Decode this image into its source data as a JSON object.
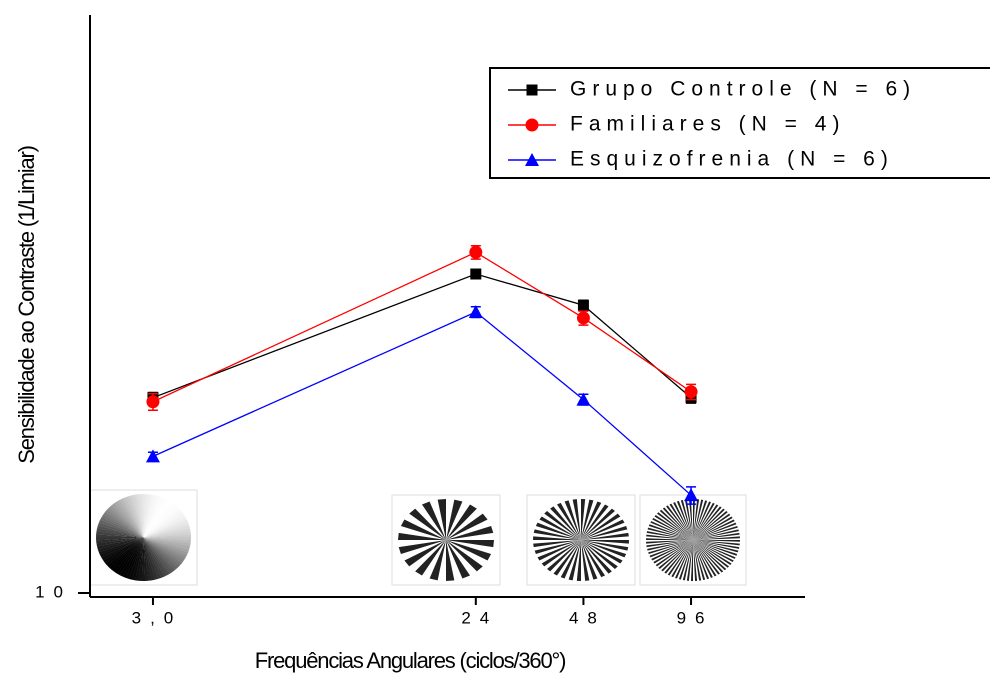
{
  "chart_data": {
    "type": "line",
    "x_label": "Frequências Angulares (ciclos/360°)",
    "y_label": "Sensibilidade ao Contraste (1/Limiar)",
    "xscale": "log",
    "yscale": "log",
    "x": [
      3,
      24,
      48,
      96
    ],
    "xlim": [
      2,
      200
    ],
    "ylim": [
      10,
      1000
    ],
    "xticks": [
      {
        "value": 3,
        "label": "3,0"
      },
      24,
      48,
      96
    ],
    "yticks": [
      10
    ],
    "legend": "upper right",
    "series": [
      {
        "name": "Grupo Controle (N = 6)",
        "color": "#000000",
        "marker": "square",
        "values": [
          47.4,
          127,
          99,
          47.4
        ],
        "errors": [
          2,
          4,
          4,
          2
        ]
      },
      {
        "name": "Familiares (N = 4)",
        "color": "#ff0000",
        "marker": "circle",
        "values": [
          45.9,
          151,
          89.5,
          49.7
        ],
        "errors": [
          3,
          8,
          5,
          3
        ]
      },
      {
        "name": "Esquizofrenia (N = 6)",
        "color": "#0000ff",
        "marker": "triangle",
        "values": [
          29.7,
          93.8,
          46.7,
          21.8
        ],
        "errors": [
          1,
          4,
          2,
          1.5
        ]
      }
    ]
  }
}
